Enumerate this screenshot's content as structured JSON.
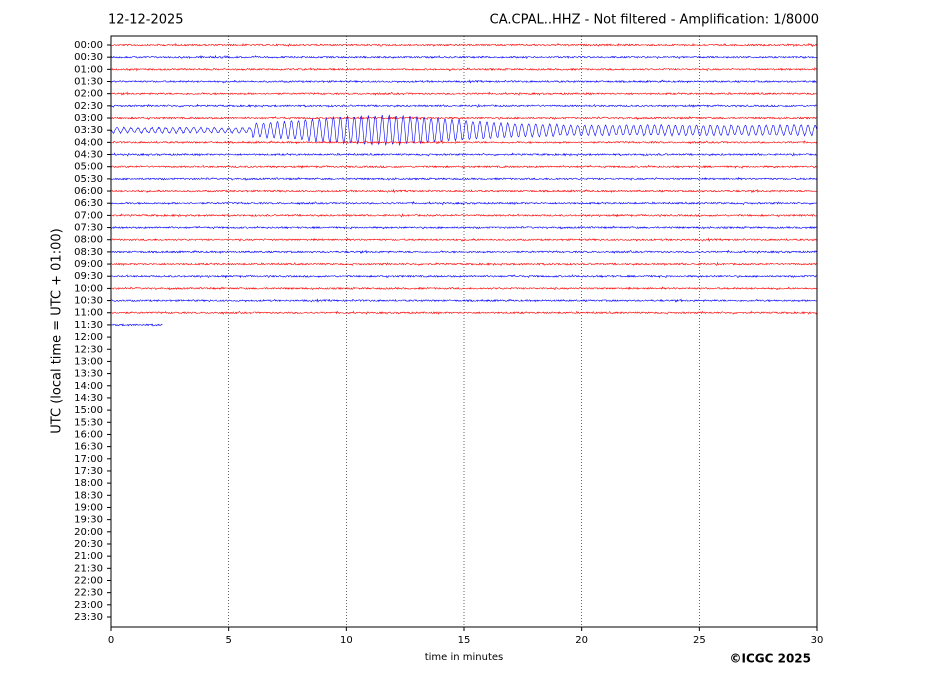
{
  "chart_data": {
    "type": "helicorder",
    "title_left": "12-12-2025",
    "title": "CA.CPAL..HHZ - Not filtered - Amplification: 1/8000",
    "x_label": "time in minutes",
    "y_label": "UTC (local time = UTC + 01:00)",
    "credit": "©ICGC 2025",
    "categories": [
      "00:00",
      "00:30",
      "01:00",
      "01:30",
      "02:00",
      "02:30",
      "03:00",
      "03:30",
      "04:00",
      "04:30",
      "05:00",
      "05:30",
      "06:00",
      "06:30",
      "07:00",
      "07:30",
      "08:00",
      "08:30",
      "09:00",
      "09:30",
      "10:00",
      "10:30",
      "11:00",
      "11:30",
      "12:00",
      "12:30",
      "13:00",
      "13:30",
      "14:00",
      "14:30",
      "15:00",
      "15:30",
      "16:00",
      "16:30",
      "17:00",
      "17:30",
      "18:00",
      "18:30",
      "19:00",
      "19:30",
      "20:00",
      "20:30",
      "21:00",
      "21:30",
      "22:00",
      "22:30",
      "23:00",
      "23:30"
    ],
    "trace_ends": [
      30,
      30,
      30,
      30,
      30,
      30,
      30,
      30,
      30,
      30,
      30,
      30,
      30,
      30,
      30,
      30,
      30,
      30,
      30,
      30,
      30,
      30,
      30,
      2.2
    ],
    "trace_colors": [
      "#ff0000",
      "#0000ff"
    ],
    "xlim": [
      0,
      30
    ],
    "xticks": [
      0,
      5,
      10,
      15,
      20,
      25,
      30
    ],
    "grid": true
  }
}
